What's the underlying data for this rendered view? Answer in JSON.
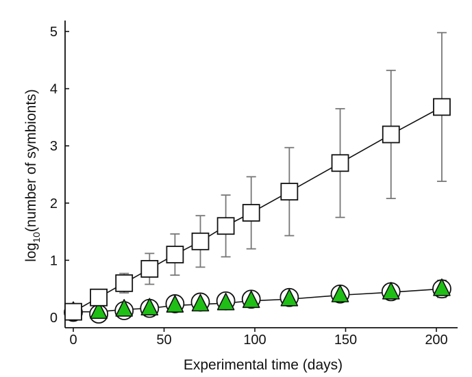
{
  "chart_data": {
    "type": "line",
    "title": "",
    "xlabel": "Experimental time (days)",
    "ylabel_main": "log",
    "ylabel_sub": "10",
    "ylabel_rest": "(number of symbionts)",
    "xlim": [
      -3,
      210
    ],
    "ylim": [
      0,
      5.2
    ],
    "xticks": [
      0,
      50,
      100,
      150,
      200
    ],
    "yticks": [
      0,
      1,
      2,
      3,
      4,
      5
    ],
    "series": [
      {
        "name": "squares",
        "marker": "square",
        "color": "#ffffff",
        "x": [
          0,
          14,
          28,
          42,
          56,
          70,
          84,
          98,
          119,
          147,
          175,
          203
        ],
        "y": [
          0.1,
          0.35,
          0.6,
          0.85,
          1.1,
          1.33,
          1.6,
          1.83,
          2.2,
          2.7,
          3.2,
          3.68
        ],
        "err": [
          0,
          0.1,
          0.17,
          0.27,
          0.36,
          0.45,
          0.54,
          0.63,
          0.77,
          0.95,
          1.12,
          1.3
        ]
      },
      {
        "name": "circles",
        "marker": "circle",
        "color": "#ffffff",
        "x": [
          0,
          14,
          28,
          42,
          56,
          70,
          84,
          98,
          119,
          147,
          175,
          203
        ],
        "y": [
          0.09,
          0.06,
          0.12,
          0.16,
          0.24,
          0.27,
          0.29,
          0.32,
          0.35,
          0.41,
          0.45,
          0.5
        ],
        "err": [
          0,
          0,
          0,
          0,
          0,
          0,
          0,
          0,
          0,
          0,
          0,
          0.15
        ]
      },
      {
        "name": "triangles",
        "marker": "triangle",
        "color": "#1fbf16",
        "x": [
          0,
          14,
          28,
          42,
          56,
          70,
          84,
          98,
          119,
          147,
          175,
          203
        ],
        "y": [
          0.1,
          0.1,
          0.14,
          0.16,
          0.21,
          0.23,
          0.25,
          0.29,
          0.32,
          0.39,
          0.44,
          0.5
        ],
        "err": [
          0,
          0,
          0,
          0,
          0,
          0,
          0,
          0,
          0,
          0,
          0,
          0
        ]
      }
    ]
  }
}
